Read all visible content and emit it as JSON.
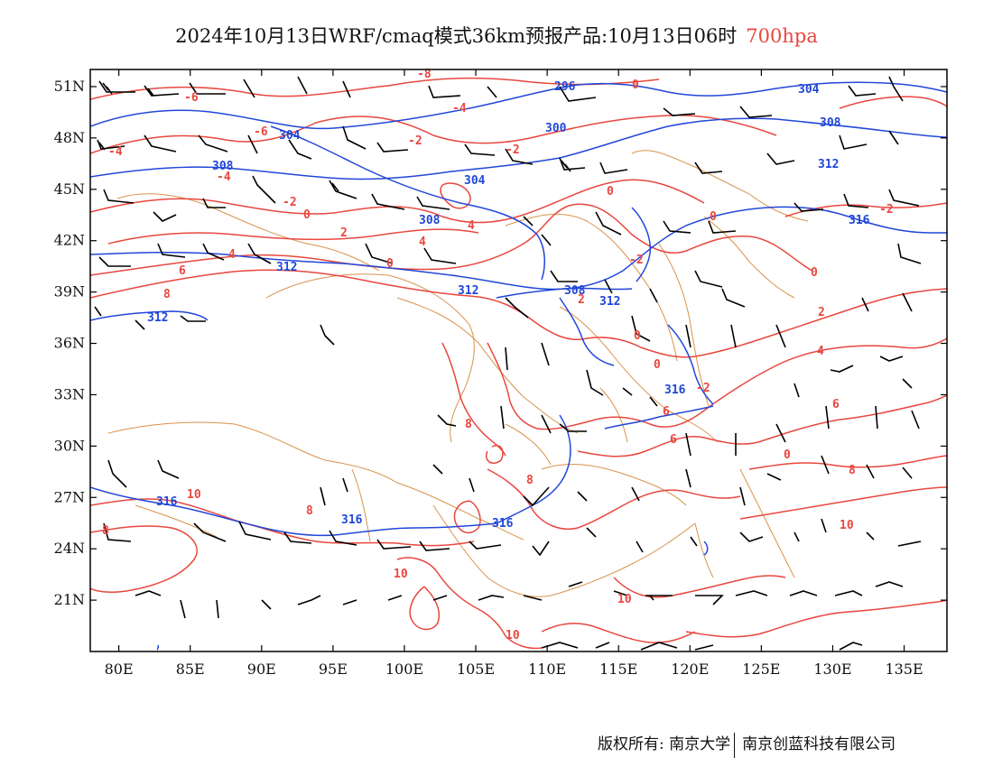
{
  "title": {
    "text": "2024年10月13日WRF/cmaq模式36km预报产品:10月13日06时",
    "level": "700hpa",
    "level_color": "#e8473f"
  },
  "axes": {
    "lat_labels": [
      "51N",
      "48N",
      "45N",
      "42N",
      "39N",
      "36N",
      "33N",
      "30N",
      "27N",
      "24N",
      "21N"
    ],
    "lat_values": [
      51,
      48,
      45,
      42,
      39,
      36,
      33,
      30,
      27,
      24,
      21
    ],
    "lon_labels": [
      "80E",
      "85E",
      "90E",
      "95E",
      "100E",
      "105E",
      "110E",
      "115E",
      "120E",
      "125E",
      "130E",
      "135E"
    ],
    "lon_values": [
      80,
      85,
      90,
      95,
      100,
      105,
      110,
      115,
      120,
      125,
      130,
      135
    ],
    "lat_range": [
      18,
      52
    ],
    "lon_range": [
      78,
      138
    ]
  },
  "colors": {
    "temperature_isolines": "#e8473f",
    "geopotential_isolines": "#2147d8",
    "borders": "#d9924a",
    "wind_barbs": "#000000"
  },
  "geopotential_labels": [
    "296",
    "300",
    "304",
    "304",
    "304",
    "308",
    "308",
    "308",
    "312",
    "312",
    "312",
    "312",
    "312",
    "316",
    "316",
    "316",
    "316",
    "316",
    "308"
  ],
  "temperature_labels": [
    "-8",
    "-6",
    "-6",
    "-4",
    "-4",
    "-4",
    "-2",
    "-2",
    "-2",
    "0",
    "0",
    "0",
    "0",
    "0",
    "0",
    "2",
    "2",
    "4",
    "4",
    "4",
    "6",
    "6",
    "8",
    "8",
    "8",
    "8",
    "8",
    "10",
    "10",
    "10",
    "10",
    "0",
    "-2",
    "-2",
    "0",
    "2",
    "4",
    "6",
    "6",
    "8",
    "10",
    "0",
    "-2"
  ],
  "footer": {
    "left": "版权所有: 南京大学",
    "right": "南京创蓝科技有限公司"
  }
}
